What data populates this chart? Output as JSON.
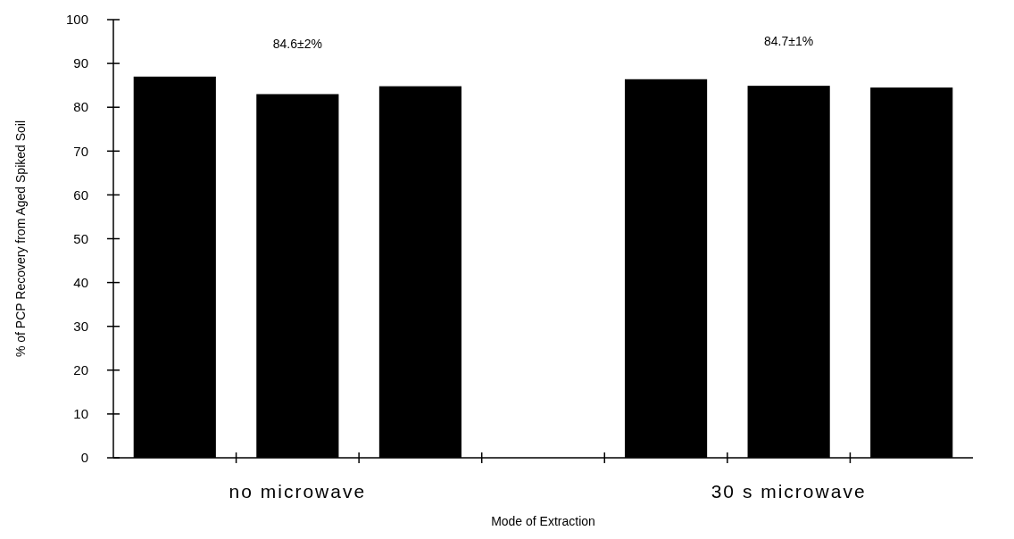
{
  "chart_data": {
    "type": "bar",
    "xlabel": "Mode of Extraction",
    "ylabel": "% of PCP Recovery from Aged Spiked Soil",
    "categories": [
      null,
      "no microwave",
      null,
      null,
      null,
      "30 s  microwave",
      null
    ],
    "values": [
      87,
      83,
      84.8,
      null,
      86.4,
      84.9,
      84.5
    ],
    "color": "#000000",
    "ylim": [
      0,
      100
    ],
    "yticks": [
      0,
      10,
      20,
      30,
      40,
      50,
      60,
      70,
      80,
      90,
      100
    ],
    "annotations": [
      "84.6±2%",
      "84.7±1%"
    ]
  }
}
